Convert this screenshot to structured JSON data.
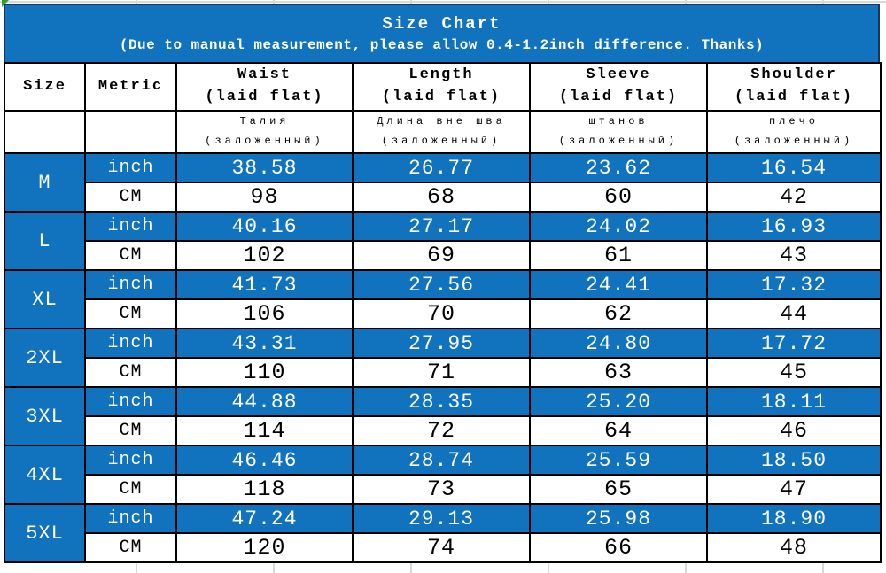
{
  "chart_data": {
    "type": "table",
    "title": "Size Chart",
    "subtitle": "(Due to manual measurement, please allow 0.4-1.2inch difference.  Thanks)",
    "columns": [
      {
        "en": "Size",
        "en_sub": "",
        "ru": "",
        "ru_sub": ""
      },
      {
        "en": "Metric",
        "en_sub": "",
        "ru": "",
        "ru_sub": ""
      },
      {
        "en": "Waist",
        "en_sub": "(laid flat)",
        "ru": "Талия",
        "ru_sub": "(заложенный)"
      },
      {
        "en": "Length",
        "en_sub": "(laid flat)",
        "ru": "Длина вне шва",
        "ru_sub": "(заложенный)"
      },
      {
        "en": "Sleeve",
        "en_sub": "(laid flat)",
        "ru": "штанов",
        "ru_sub": "(заложенный)"
      },
      {
        "en": "Shoulder",
        "en_sub": "(laid flat)",
        "ru": "плечо",
        "ru_sub": "(заложенный)"
      }
    ],
    "unit_row_labels": {
      "inch": "inch",
      "cm": "CM"
    },
    "sizes": [
      {
        "size": "M",
        "inch": [
          "38.58",
          "26.77",
          "23.62",
          "16.54"
        ],
        "cm": [
          "98",
          "68",
          "60",
          "42"
        ]
      },
      {
        "size": "L",
        "inch": [
          "40.16",
          "27.17",
          "24.02",
          "16.93"
        ],
        "cm": [
          "102",
          "69",
          "61",
          "43"
        ]
      },
      {
        "size": "XL",
        "inch": [
          "41.73",
          "27.56",
          "24.41",
          "17.32"
        ],
        "cm": [
          "106",
          "70",
          "62",
          "44"
        ]
      },
      {
        "size": "2XL",
        "inch": [
          "43.31",
          "27.95",
          "24.80",
          "17.72"
        ],
        "cm": [
          "110",
          "71",
          "63",
          "45"
        ]
      },
      {
        "size": "3XL",
        "inch": [
          "44.88",
          "28.35",
          "25.20",
          "18.11"
        ],
        "cm": [
          "114",
          "72",
          "64",
          "46"
        ]
      },
      {
        "size": "4XL",
        "inch": [
          "46.46",
          "28.74",
          "25.59",
          "18.50"
        ],
        "cm": [
          "118",
          "73",
          "65",
          "47"
        ]
      },
      {
        "size": "5XL",
        "inch": [
          "47.24",
          "29.13",
          "25.98",
          "18.90"
        ],
        "cm": [
          "120",
          "74",
          "66",
          "48"
        ]
      }
    ]
  },
  "colors": {
    "banner_blue": "#1172bd",
    "inch_row_blue": "#1172bd",
    "border_black": "#000000",
    "banner_border_navy": "#16365c",
    "text_white": "#ffffff",
    "text_black": "#000000",
    "gridline_grey": "#d8d8d8",
    "corner_green": "#2f9e33"
  }
}
